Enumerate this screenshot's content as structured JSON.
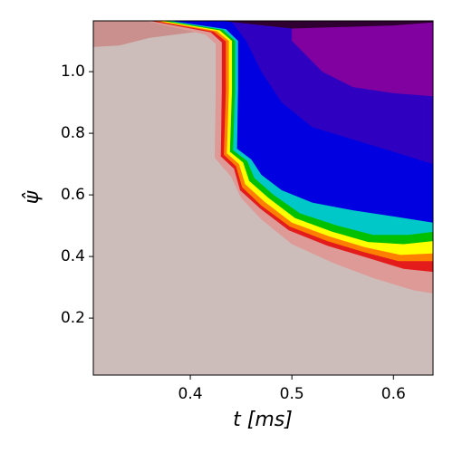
{
  "chart_data": {
    "type": "contourf",
    "xlabel": "t [ms]",
    "ylabel": "ψ̂",
    "xlim": [
      0.3045,
      0.639
    ],
    "ylim": [
      0.015,
      1.165
    ],
    "xticks": [
      0.4,
      0.5,
      0.6
    ],
    "yticks": [
      0.2,
      0.4,
      0.6,
      0.8,
      {
        "value": 1,
        "label": "1.0"
      }
    ],
    "background": "#cdbdba",
    "regions": [
      {
        "color": "#c9908d",
        "x": [
          0.3045,
          0.3045,
          0.33,
          0.36,
          0.42
        ],
        "y": [
          1.165,
          1.08,
          1.085,
          1.11,
          1.135
        ]
      },
      {
        "color": "#dd9a96",
        "x": [
          0.355,
          0.415,
          0.425,
          0.425,
          0.424,
          0.44,
          0.45,
          0.47,
          0.5,
          0.54,
          0.58,
          0.62,
          0.639
        ],
        "y": [
          1.165,
          1.12,
          1.09,
          0.94,
          0.72,
          0.66,
          0.59,
          0.52,
          0.44,
          0.38,
          0.33,
          0.29,
          0.28
        ]
      },
      {
        "color": "#e41b1b",
        "x": [
          0.36,
          0.42,
          0.431,
          0.431,
          0.43,
          0.443,
          0.449,
          0.469,
          0.497,
          0.535,
          0.575,
          0.61,
          0.639
        ],
        "y": [
          1.165,
          1.128,
          1.095,
          0.94,
          0.725,
          0.685,
          0.615,
          0.555,
          0.485,
          0.435,
          0.395,
          0.36,
          0.35
        ]
      },
      {
        "color": "#ff8000",
        "x": [
          0.364,
          0.423,
          0.435,
          0.435,
          0.433,
          0.445,
          0.451,
          0.47,
          0.498,
          0.535,
          0.57,
          0.605,
          0.639
        ],
        "y": [
          1.165,
          1.13,
          1.098,
          0.94,
          0.73,
          0.693,
          0.625,
          0.565,
          0.497,
          0.45,
          0.415,
          0.385,
          0.385
        ]
      },
      {
        "color": "#ffff00",
        "x": [
          0.368,
          0.426,
          0.438,
          0.438,
          0.436,
          0.448,
          0.454,
          0.473,
          0.5,
          0.537,
          0.572,
          0.607,
          0.639
        ],
        "y": [
          1.165,
          1.132,
          1.1,
          0.94,
          0.735,
          0.7,
          0.635,
          0.578,
          0.51,
          0.465,
          0.43,
          0.405,
          0.41
        ]
      },
      {
        "color": "#00c000",
        "x": [
          0.372,
          0.429,
          0.441,
          0.441,
          0.439,
          0.452,
          0.458,
          0.477,
          0.503,
          0.54,
          0.575,
          0.61,
          0.639
        ],
        "y": [
          1.165,
          1.134,
          1.1,
          0.94,
          0.74,
          0.705,
          0.645,
          0.59,
          0.525,
          0.48,
          0.447,
          0.44,
          0.45
        ]
      },
      {
        "color": "#00c8c8",
        "x": [
          0.376,
          0.432,
          0.444,
          0.444,
          0.442,
          0.456,
          0.463,
          0.482,
          0.508,
          0.545,
          0.58,
          0.615,
          0.639
        ],
        "y": [
          1.165,
          1.136,
          1.1,
          0.94,
          0.745,
          0.71,
          0.655,
          0.6,
          0.54,
          0.5,
          0.47,
          0.47,
          0.48
        ]
      },
      {
        "color": "#0000e0",
        "x": [
          0.38,
          0.435,
          0.447,
          0.447,
          0.446,
          0.46,
          0.47,
          0.49,
          0.52,
          0.56,
          0.6,
          0.639
        ],
        "y": [
          1.165,
          1.138,
          1.1,
          0.94,
          0.75,
          0.715,
          0.665,
          0.615,
          0.575,
          0.55,
          0.53,
          0.51
        ]
      },
      {
        "color": "#3000c0",
        "x": [
          0.44,
          0.455,
          0.47,
          0.49,
          0.52,
          0.56,
          0.6,
          0.639
        ],
        "y": [
          1.165,
          1.1,
          1.0,
          0.9,
          0.82,
          0.78,
          0.74,
          0.7
        ]
      },
      {
        "color": "#8000a0",
        "x": [
          0.5,
          0.5,
          0.53,
          0.56,
          0.6,
          0.639
        ],
        "y": [
          1.165,
          1.1,
          1.0,
          0.95,
          0.93,
          0.92
        ]
      },
      {
        "color": "#300030",
        "x": [
          0.43,
          0.5,
          0.6,
          0.639
        ],
        "y": [
          1.165,
          1.14,
          1.15,
          1.16
        ]
      }
    ]
  }
}
